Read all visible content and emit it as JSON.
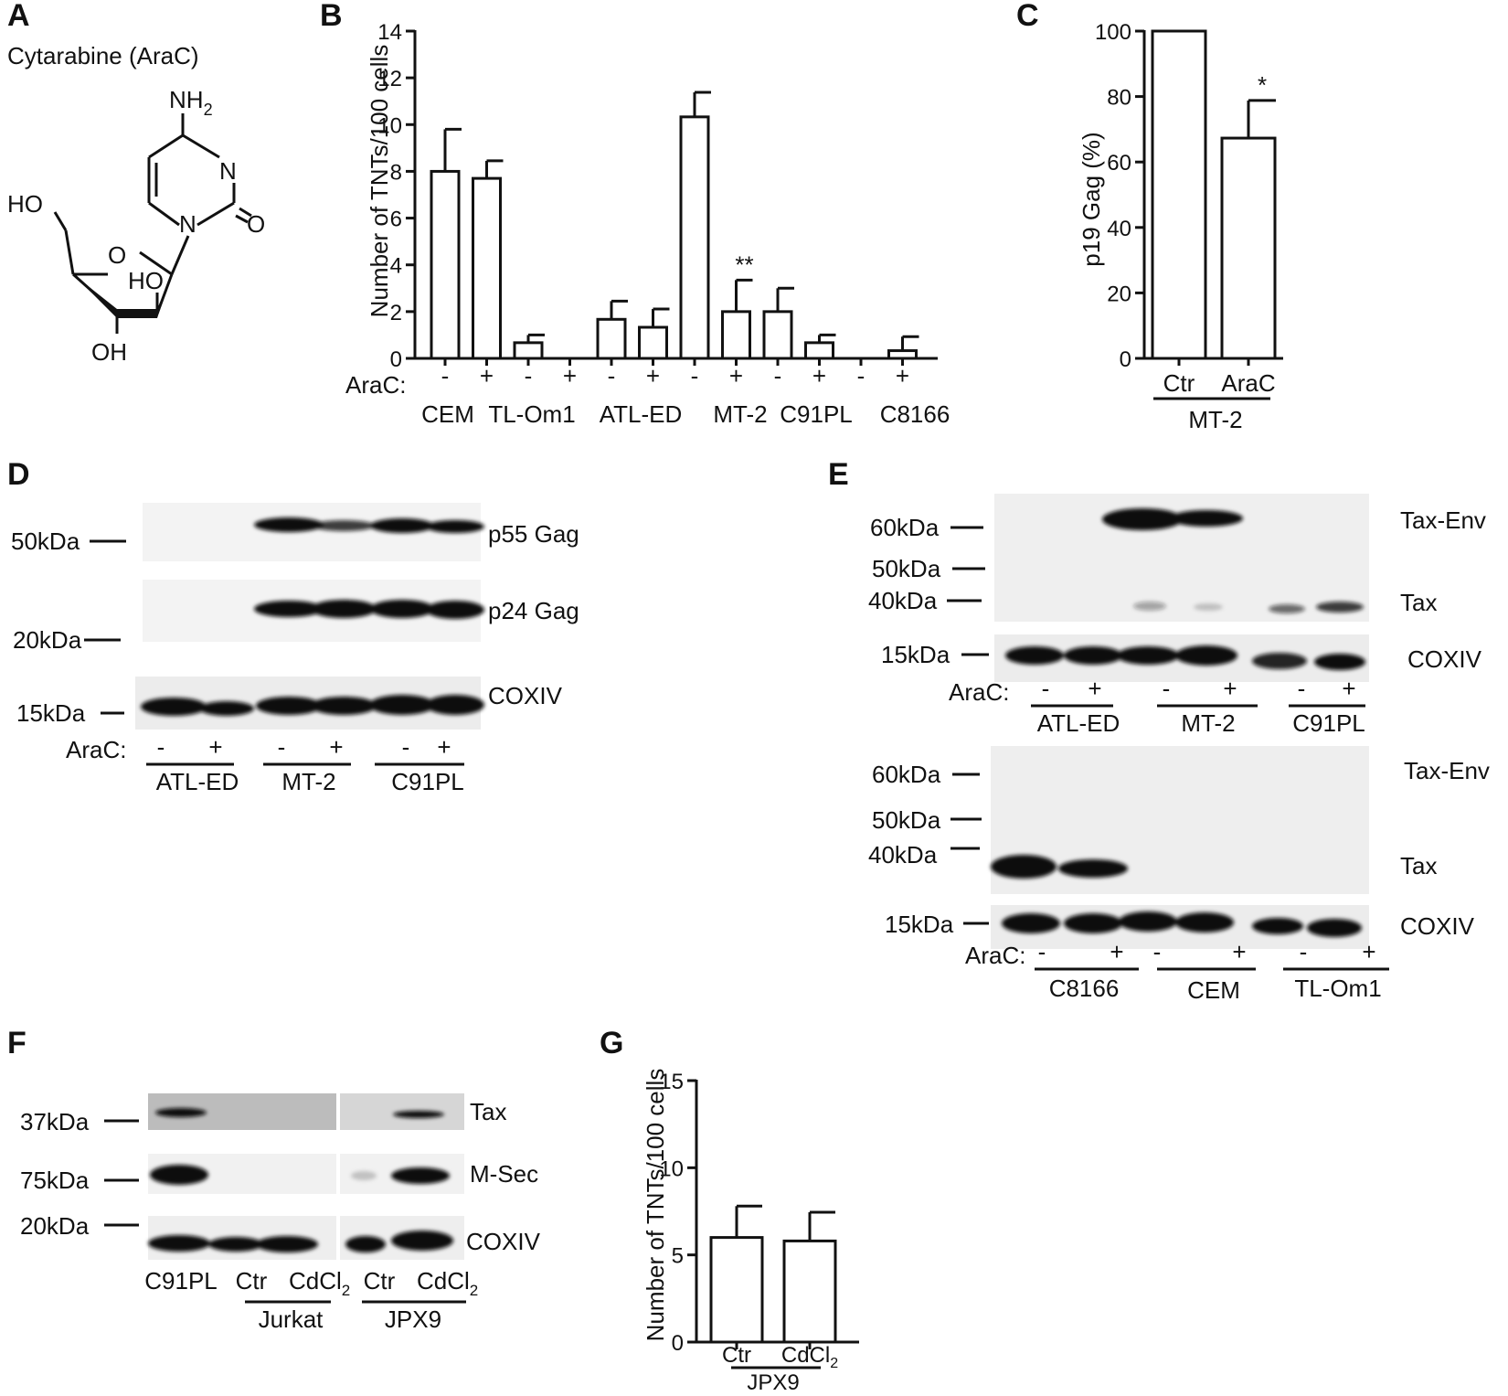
{
  "panel_labels": [
    "A",
    "B",
    "C",
    "D",
    "E",
    "F",
    "G"
  ],
  "panelA": {
    "title": "Cytarabine (AraC)",
    "atoms": {
      "nh2": "NH",
      "nh2_sub": "2",
      "n": "N",
      "o_ketone": "O",
      "ho_left": "HO",
      "o_ring": "O",
      "ho_mid": "HO",
      "oh_bottom": "OH"
    }
  },
  "panelB": {
    "ylabel": "Number of TNTs/100 cells",
    "ylim": [
      0,
      14
    ],
    "yticks": [
      0,
      2,
      4,
      6,
      8,
      10,
      12,
      14
    ],
    "arac_label": "AraC:",
    "treat_marks": [
      "-",
      "+",
      "-",
      "+",
      "-",
      "+",
      "-",
      "+",
      "-",
      "+",
      "-",
      "+"
    ],
    "groups": [
      "CEM",
      "TL-Om1",
      "ATL-ED",
      "MT-2",
      "C91PL",
      "C8166"
    ],
    "sig": {
      "index": 7,
      "text": "**"
    }
  },
  "panelC": {
    "ylabel": "p19 Gag (%)",
    "ylim": [
      0,
      100
    ],
    "yticks": [
      0,
      20,
      40,
      60,
      80,
      100
    ],
    "categories": [
      "Ctr",
      "AraC"
    ],
    "group": "MT-2",
    "sig": {
      "index": 1,
      "text": "*"
    }
  },
  "panelD": {
    "markers": [
      "50kDa",
      "20kDa",
      "15kDa"
    ],
    "bands": [
      "p55 Gag",
      "p24 Gag",
      "COXIV"
    ],
    "arac_label": "AraC:",
    "treat_marks": [
      "-",
      "+",
      "-",
      "+",
      "-",
      "+"
    ],
    "groups": [
      "ATL-ED",
      "MT-2",
      "C91PL"
    ]
  },
  "panelE": {
    "top": {
      "markers": [
        "60kDa",
        "50kDa",
        "40kDa",
        "15kDa"
      ],
      "bands": [
        "Tax-Env",
        "Tax",
        "COXIV"
      ],
      "arac_label": "AraC:",
      "treat_marks": [
        "-",
        "+",
        "-",
        "+",
        "-",
        "+"
      ],
      "groups": [
        "ATL-ED",
        "MT-2",
        "C91PL"
      ]
    },
    "bottom": {
      "markers": [
        "60kDa",
        "50kDa",
        "40kDa",
        "15kDa"
      ],
      "bands": [
        "Tax-Env",
        "Tax",
        "COXIV"
      ],
      "arac_label": "AraC:",
      "treat_marks": [
        "-",
        "+",
        "-",
        "+",
        "-",
        "+"
      ],
      "groups": [
        "C8166",
        "CEM",
        "TL-Om1"
      ]
    }
  },
  "panelF": {
    "markers": [
      "37kDa",
      "75kDa",
      "20kDa"
    ],
    "bands": [
      "Tax",
      "M-Sec",
      "COXIV"
    ],
    "lanes": [
      "C91PL",
      "Ctr",
      "CdCl",
      "Ctr",
      "CdCl"
    ],
    "sub": "2",
    "groups": [
      "Jurkat",
      "JPX9"
    ]
  },
  "panelG": {
    "ylabel": "Number of TNTs/100 cells",
    "ylim": [
      0,
      15
    ],
    "yticks": [
      0,
      5,
      10,
      15
    ],
    "categories": [
      "Ctr",
      "CdCl"
    ],
    "sub": "2",
    "group": "JPX9"
  },
  "chart_data": [
    {
      "type": "bar",
      "ylabel": "Number of TNTs/100 cells",
      "ylim": [
        0,
        14
      ],
      "categories": [
        "CEM -",
        "CEM +",
        "TL-Om1 -",
        "TL-Om1 +",
        "ATL-ED -",
        "ATL-ED +",
        "MT-2 -",
        "MT-2 +",
        "C91PL -",
        "C91PL +",
        "C8166 -",
        "C8166 +"
      ],
      "values": [
        8.0,
        7.7,
        0.67,
        0,
        1.67,
        1.33,
        10.33,
        2.0,
        2.0,
        0.67,
        0,
        0.33
      ],
      "errors": [
        1.8,
        0.75,
        0.33,
        0,
        0.78,
        0.78,
        1.05,
        1.35,
        1.0,
        0.33,
        0,
        0.6
      ]
    },
    {
      "type": "bar",
      "ylabel": "p19 Gag (%)",
      "ylim": [
        0,
        100
      ],
      "categories": [
        "Ctr",
        "AraC"
      ],
      "values": [
        100,
        67.3
      ],
      "errors": [
        0,
        11.5
      ]
    },
    {
      "type": "bar",
      "ylabel": "Number of TNTs/100 cells",
      "ylim": [
        0,
        15
      ],
      "categories": [
        "Ctr",
        "CdCl2"
      ],
      "values": [
        6.0,
        5.8
      ],
      "errors": [
        1.8,
        1.65
      ]
    }
  ]
}
